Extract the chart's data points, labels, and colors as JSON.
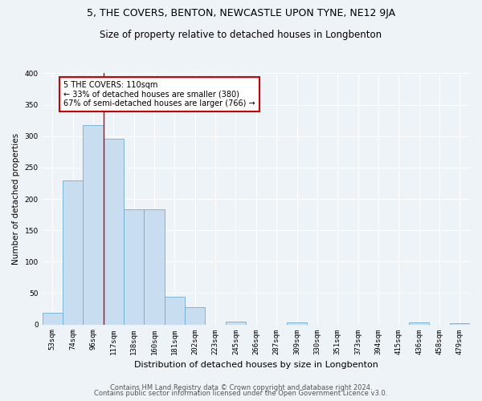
{
  "title": "5, THE COVERS, BENTON, NEWCASTLE UPON TYNE, NE12 9JA",
  "subtitle": "Size of property relative to detached houses in Longbenton",
  "xlabel": "Distribution of detached houses by size in Longbenton",
  "ylabel": "Number of detached properties",
  "bar_labels": [
    "53sqm",
    "74sqm",
    "96sqm",
    "117sqm",
    "138sqm",
    "160sqm",
    "181sqm",
    "202sqm",
    "223sqm",
    "245sqm",
    "266sqm",
    "287sqm",
    "309sqm",
    "330sqm",
    "351sqm",
    "373sqm",
    "394sqm",
    "415sqm",
    "436sqm",
    "458sqm",
    "479sqm"
  ],
  "bar_values": [
    18,
    230,
    318,
    296,
    184,
    184,
    44,
    27,
    0,
    5,
    0,
    0,
    3,
    0,
    0,
    0,
    0,
    0,
    3,
    0,
    2
  ],
  "bar_color": "#c9ddf0",
  "bar_edge_color": "#6baed6",
  "annotation_box_text": "5 THE COVERS: 110sqm\n← 33% of detached houses are smaller (380)\n67% of semi-detached houses are larger (766) →",
  "vline_color": "#cc0000",
  "vline_x": 2.5,
  "ylim": [
    0,
    400
  ],
  "yticks": [
    0,
    50,
    100,
    150,
    200,
    250,
    300,
    350,
    400
  ],
  "footer_line1": "Contains HM Land Registry data © Crown copyright and database right 2024.",
  "footer_line2": "Contains public sector information licensed under the Open Government Licence v3.0.",
  "background_color": "#eef3f8",
  "plot_bg_color": "#eef3f8",
  "grid_color": "#ffffff",
  "title_fontsize": 9,
  "subtitle_fontsize": 8.5,
  "xlabel_fontsize": 8,
  "ylabel_fontsize": 7.5,
  "tick_fontsize": 6.5,
  "footer_fontsize": 6,
  "ann_fontsize": 7
}
